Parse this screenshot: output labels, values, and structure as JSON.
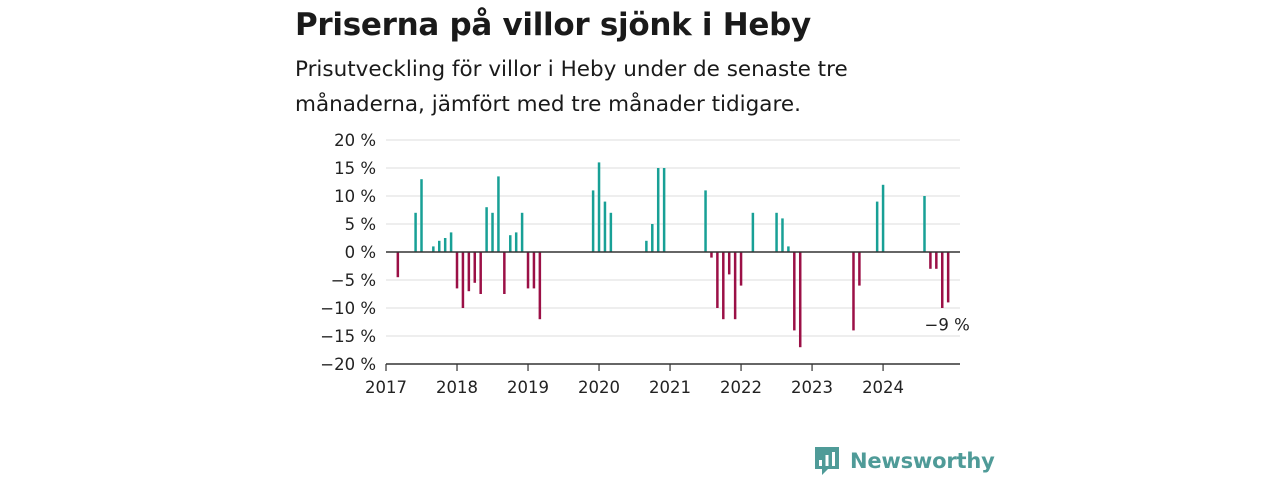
{
  "header": {
    "title": "Priserna på villor sjönk i Heby",
    "subtitle": "Prisutveckling för villor i Heby under de senaste tre månaderna, jämfört med tre månader tidigare."
  },
  "brand": {
    "name": "Newsworthy",
    "color": "#4f9b98"
  },
  "chart_data": {
    "type": "bar",
    "y_unit": "%",
    "ylim": [
      -20,
      20
    ],
    "y_ticks": [
      20,
      15,
      10,
      5,
      0,
      -5,
      -10,
      -15,
      -20
    ],
    "y_tick_labels": [
      "20 %",
      "15 %",
      "10 %",
      "5 %",
      "0 %",
      "−5 %",
      "−10 %",
      "−15 %",
      "−20 %"
    ],
    "x_tick_labels": [
      "2017",
      "2018",
      "2019",
      "2020",
      "2021",
      "2022",
      "2023",
      "2024"
    ],
    "xlim": [
      "2017-01",
      "2025-02"
    ],
    "grid": true,
    "positive_color": "#18a096",
    "negative_color": "#9b1046",
    "end_label": "−9 %",
    "series": [
      {
        "values": [
          {
            "x": "2017-03",
            "y": -4.5
          },
          {
            "x": "2017-06",
            "y": 7
          },
          {
            "x": "2017-07",
            "y": 13
          },
          {
            "x": "2017-09",
            "y": 1
          },
          {
            "x": "2017-10",
            "y": 2
          },
          {
            "x": "2017-11",
            "y": 2.5
          },
          {
            "x": "2017-12",
            "y": 3.5
          },
          {
            "x": "2018-01",
            "y": -6.5
          },
          {
            "x": "2018-02",
            "y": -10
          },
          {
            "x": "2018-03",
            "y": -7
          },
          {
            "x": "2018-04",
            "y": -5.5
          },
          {
            "x": "2018-05",
            "y": -7.5
          },
          {
            "x": "2018-06",
            "y": 8
          },
          {
            "x": "2018-07",
            "y": 7
          },
          {
            "x": "2018-08",
            "y": 13.5
          },
          {
            "x": "2018-09",
            "y": -7.5
          },
          {
            "x": "2018-10",
            "y": 3
          },
          {
            "x": "2018-11",
            "y": 3.5
          },
          {
            "x": "2018-12",
            "y": 7
          },
          {
            "x": "2019-01",
            "y": -6.5
          },
          {
            "x": "2019-02",
            "y": -6.5
          },
          {
            "x": "2019-03",
            "y": -12
          },
          {
            "x": "2019-12",
            "y": 11
          },
          {
            "x": "2020-01",
            "y": 16
          },
          {
            "x": "2020-02",
            "y": 9
          },
          {
            "x": "2020-03",
            "y": 7
          },
          {
            "x": "2020-09",
            "y": 2
          },
          {
            "x": "2020-10",
            "y": 5
          },
          {
            "x": "2020-11",
            "y": 15
          },
          {
            "x": "2020-12",
            "y": 15
          },
          {
            "x": "2021-07",
            "y": 11
          },
          {
            "x": "2021-08",
            "y": -1
          },
          {
            "x": "2021-09",
            "y": -10
          },
          {
            "x": "2021-10",
            "y": -12
          },
          {
            "x": "2021-11",
            "y": -4
          },
          {
            "x": "2021-12",
            "y": -12
          },
          {
            "x": "2022-01",
            "y": -6
          },
          {
            "x": "2022-03",
            "y": 7
          },
          {
            "x": "2022-07",
            "y": 7
          },
          {
            "x": "2022-08",
            "y": 6
          },
          {
            "x": "2022-09",
            "y": 1
          },
          {
            "x": "2022-10",
            "y": -14
          },
          {
            "x": "2022-11",
            "y": -17
          },
          {
            "x": "2023-08",
            "y": -14
          },
          {
            "x": "2023-09",
            "y": -6
          },
          {
            "x": "2023-12",
            "y": 9
          },
          {
            "x": "2024-01",
            "y": 12
          },
          {
            "x": "2024-08",
            "y": 10
          },
          {
            "x": "2024-09",
            "y": -3
          },
          {
            "x": "2024-10",
            "y": -3
          },
          {
            "x": "2024-11",
            "y": -10
          },
          {
            "x": "2024-12",
            "y": -9
          }
        ]
      }
    ]
  }
}
